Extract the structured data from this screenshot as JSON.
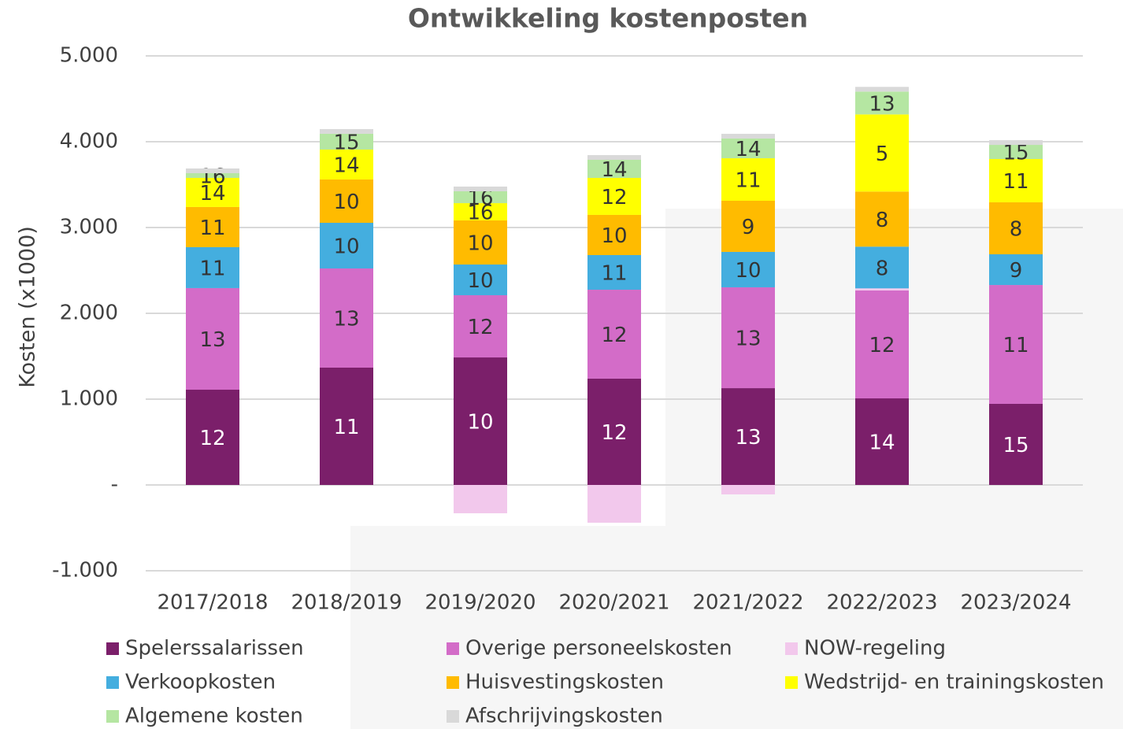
{
  "chart_data": {
    "type": "stacked_bar",
    "title": "Ontwikkeling kostenposten",
    "y_label": "Kosten (x1000)",
    "categories": [
      "2017/2018",
      "2018/2019",
      "2019/2020",
      "2020/2021",
      "2021/2022",
      "2022/2023",
      "2023/2024"
    ],
    "ylim": [
      -1000,
      5000
    ],
    "yticks": [
      {
        "value": -1000,
        "label": "-1.000"
      },
      {
        "value": 0,
        "label": "-"
      },
      {
        "value": 1000,
        "label": "1.000"
      },
      {
        "value": 2000,
        "label": "2.000"
      },
      {
        "value": 3000,
        "label": "3.000"
      },
      {
        "value": 4000,
        "label": "4.000"
      },
      {
        "value": 5000,
        "label": "5.000"
      }
    ],
    "grid": true,
    "series": [
      {
        "name": "Spelerssalarissen",
        "color": "#7b1f6a",
        "values": [
          1110,
          1367,
          1486,
          1239,
          1128,
          1009,
          945
        ],
        "labels": [
          12,
          11,
          10,
          12,
          13,
          14,
          15
        ]
      },
      {
        "name": "Overige personeelskosten",
        "color": "#d36cc8",
        "values": [
          1184,
          1156,
          725,
          1036,
          1175,
          1257,
          1385
        ],
        "labels": [
          13,
          13,
          12,
          12,
          13,
          12,
          11
        ]
      },
      {
        "name": "NOW-regeling",
        "color": "#f2c8ec",
        "values": [
          0,
          0,
          -330,
          -440,
          -110,
          25,
          0
        ],
        "labels": [
          null,
          null,
          null,
          null,
          null,
          null,
          null
        ]
      },
      {
        "name": "Verkoopkosten",
        "color": "#44aedf",
        "values": [
          477,
          532,
          358,
          404,
          413,
          486,
          358
        ],
        "labels": [
          11,
          10,
          10,
          11,
          10,
          8,
          9
        ]
      },
      {
        "name": "Huisvestingskosten",
        "color": "#ffbb00",
        "values": [
          468,
          505,
          514,
          468,
          596,
          642,
          606
        ],
        "labels": [
          11,
          10,
          10,
          10,
          9,
          8,
          8
        ]
      },
      {
        "name": "Wedstrijd- en trainingskosten",
        "color": "#ffff00",
        "values": [
          339,
          348,
          201,
          431,
          495,
          899,
          504
        ],
        "labels": [
          14,
          14,
          16,
          12,
          11,
          5,
          11
        ]
      },
      {
        "name": "Algemene kosten",
        "color": "#b5e6a2",
        "values": [
          55,
          184,
          138,
          211,
          230,
          266,
          165
        ],
        "labels": [
          16,
          15,
          16,
          14,
          14,
          13,
          15
        ]
      },
      {
        "name": "Afschrijvingskosten",
        "color": "#d9d9d9",
        "values": [
          55,
          55,
          55,
          55,
          55,
          55,
          55
        ],
        "labels": [
          null,
          null,
          null,
          null,
          null,
          null,
          null
        ]
      }
    ]
  }
}
